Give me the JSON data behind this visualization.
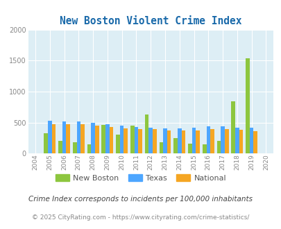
{
  "title": "New Boston Violent Crime Index",
  "years": [
    2004,
    2005,
    2006,
    2007,
    2008,
    2009,
    2010,
    2011,
    2012,
    2013,
    2014,
    2015,
    2016,
    2017,
    2018,
    2019,
    2020
  ],
  "new_boston": [
    null,
    330,
    200,
    180,
    150,
    460,
    300,
    455,
    635,
    180,
    245,
    155,
    150,
    205,
    840,
    1535,
    null
  ],
  "texas": [
    null,
    530,
    515,
    520,
    500,
    470,
    450,
    430,
    415,
    405,
    410,
    415,
    440,
    440,
    415,
    415,
    null
  ],
  "national": [
    null,
    470,
    475,
    470,
    455,
    430,
    410,
    390,
    390,
    375,
    375,
    375,
    395,
    395,
    385,
    365,
    null
  ],
  "new_boston_color": "#8dc63f",
  "texas_color": "#4da6ff",
  "national_color": "#f5a623",
  "bg_color": "#ddeef5",
  "ylim": [
    0,
    2000
  ],
  "yticks": [
    0,
    500,
    1000,
    1500,
    2000
  ],
  "legend_labels": [
    "New Boston",
    "Texas",
    "National"
  ],
  "footnote1": "Crime Index corresponds to incidents per 100,000 inhabitants",
  "footnote2": "© 2025 CityRating.com - https://www.cityrating.com/crime-statistics/",
  "title_color": "#1a6aaa",
  "footnote1_color": "#444444",
  "footnote2_color": "#888888",
  "xtick_color": "#888888",
  "ytick_color": "#888888"
}
